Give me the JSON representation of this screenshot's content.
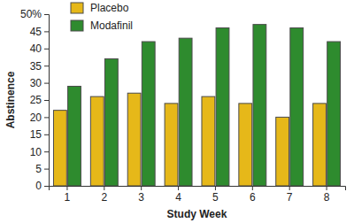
{
  "chart_data": {
    "type": "bar",
    "x_label": "Study Week",
    "y_label": "Abstinence",
    "categories": [
      "1",
      "2",
      "3",
      "4",
      "5",
      "6",
      "7",
      "8"
    ],
    "series": [
      {
        "name": "Placebo",
        "color": "#e6b819",
        "values": [
          22,
          26,
          27,
          24,
          26,
          24,
          20,
          24
        ]
      },
      {
        "name": "Modafinil",
        "color": "#2e8b2e",
        "values": [
          29,
          37,
          42,
          43,
          46,
          47,
          46,
          42
        ]
      }
    ],
    "ylim": [
      0,
      50
    ],
    "yticks": [
      0,
      5,
      10,
      15,
      20,
      25,
      30,
      35,
      40,
      45,
      {
        "value": 50,
        "label": "50%"
      }
    ],
    "grid": false,
    "legend": "top-left"
  }
}
